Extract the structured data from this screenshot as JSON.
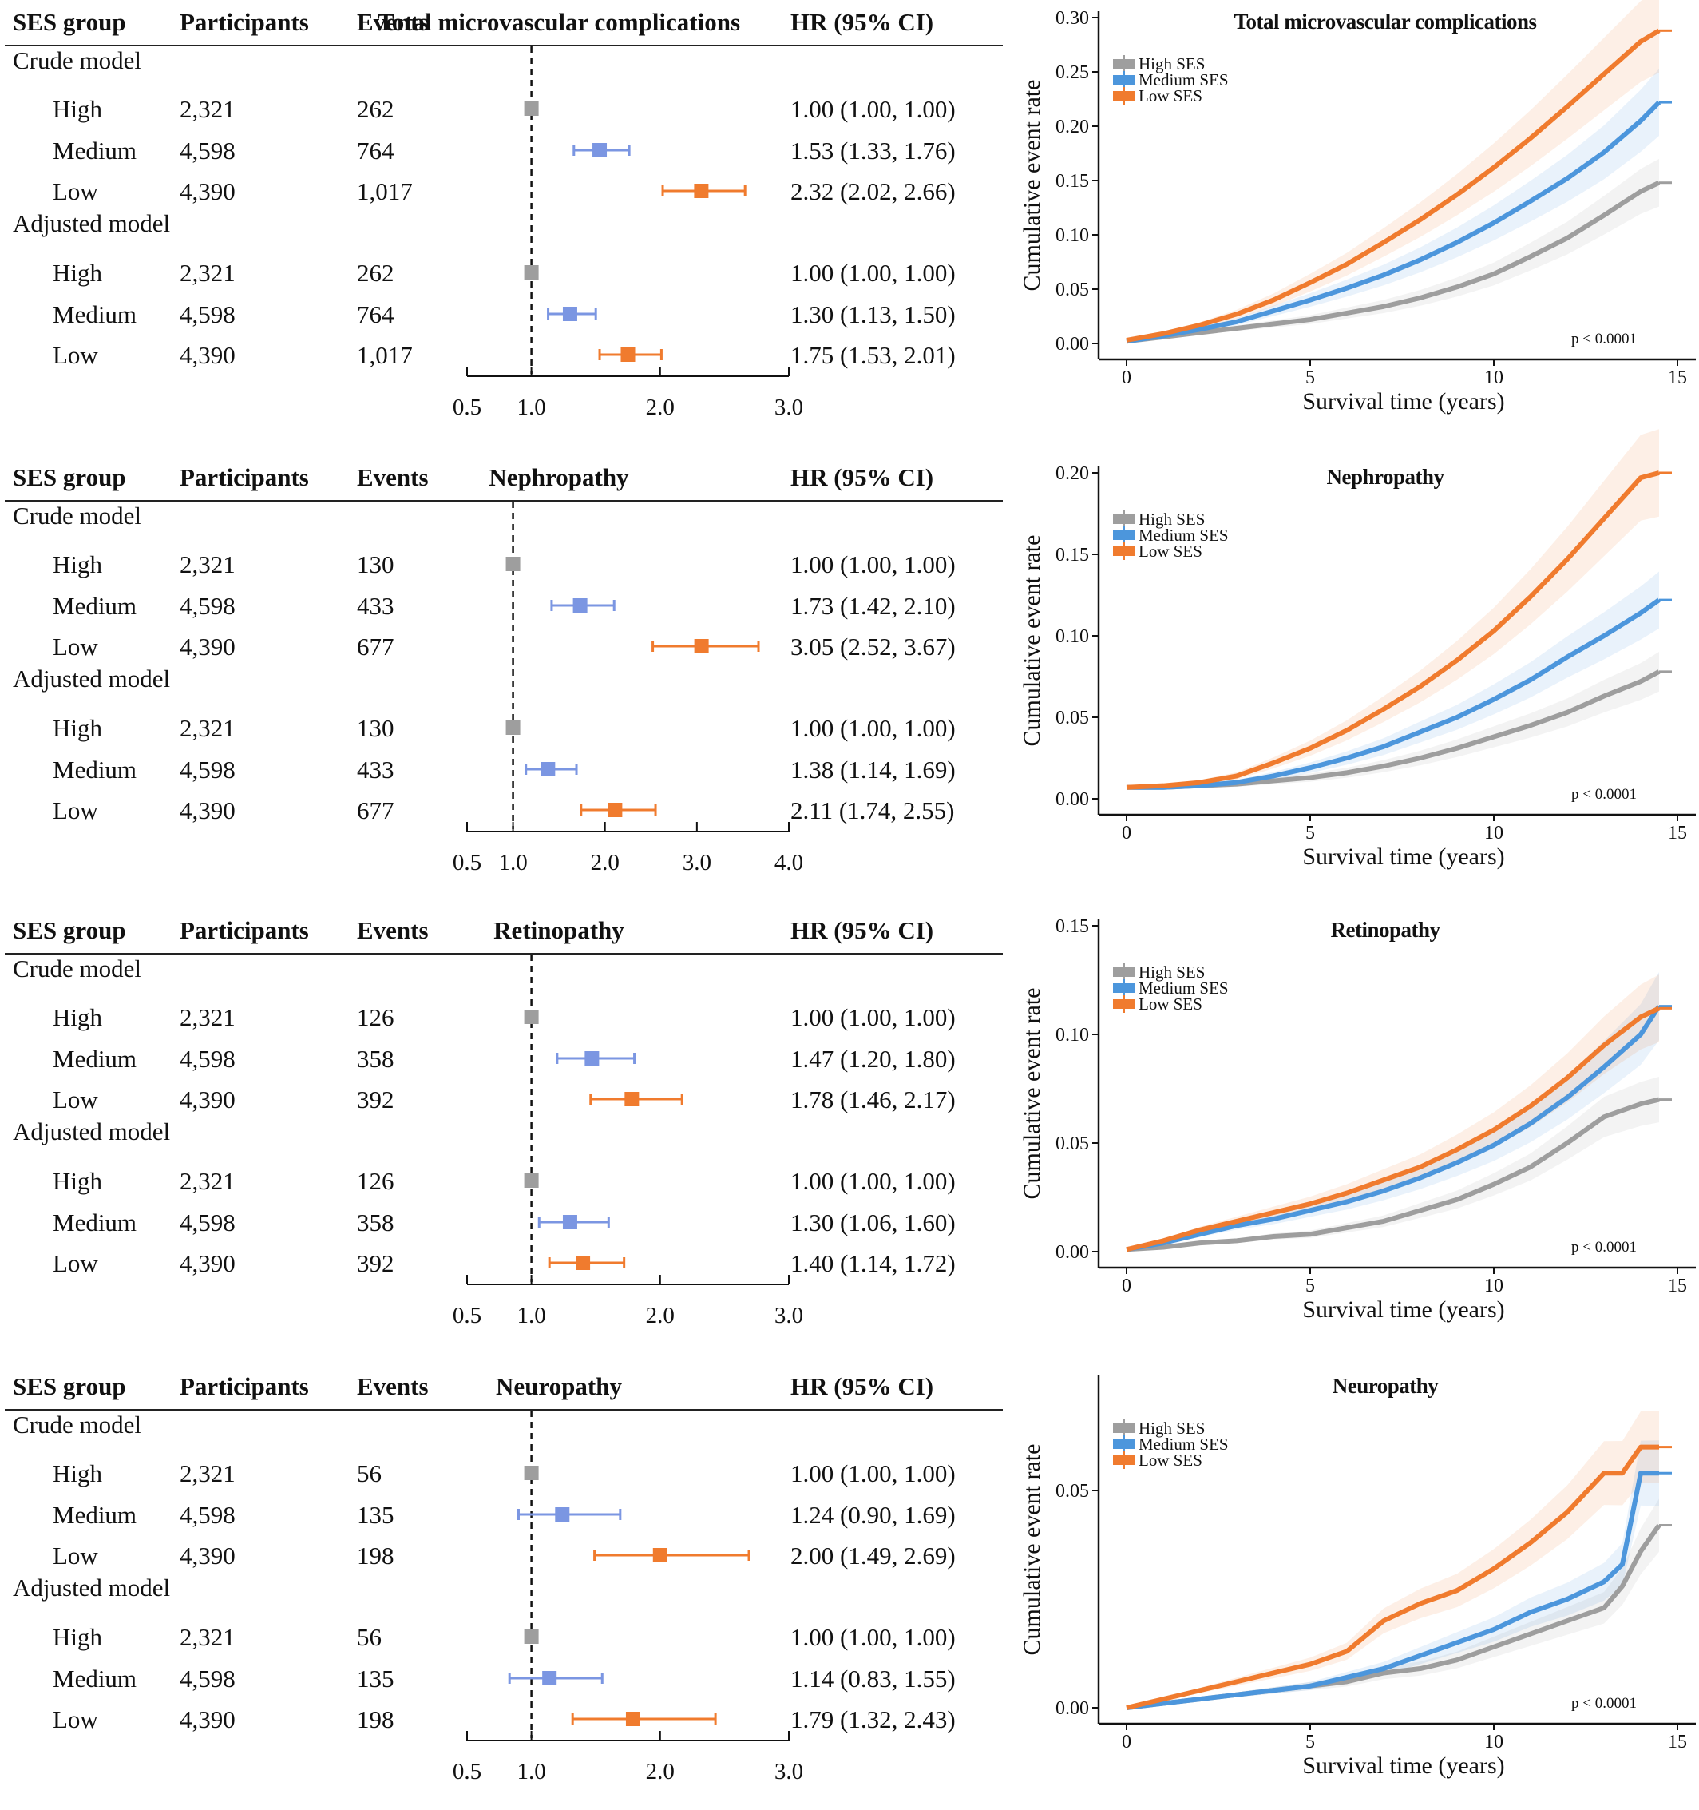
{
  "headers": {
    "group": "SES group",
    "participants": "Participants",
    "events": "Events",
    "hr": "HR (95% CI)"
  },
  "model_labels": {
    "crude": "Crude model",
    "adjusted": "Adjusted model"
  },
  "km_labels": {
    "ylabel": "Cumulative event rate",
    "xlabel": "Survival time (years)",
    "pvalue": "p < 0.0001",
    "legend": [
      "High SES",
      "Medium SES",
      "Low SES"
    ]
  },
  "colors": {
    "high": "#9E9E9E",
    "medium_forest": "#7B96E2",
    "medium_km": "#4C96DC",
    "low": "#F07B2E"
  },
  "chart_data": [
    {
      "type": "table",
      "title": "Total microvascular complications",
      "reference_line": 1.0,
      "axis_ticks": [
        "0.5",
        "1.0",
        "2.0",
        "3.0"
      ],
      "xlim": [
        0.5,
        3.0
      ],
      "rows": [
        {
          "model": "Crude model",
          "group": "High",
          "participants": "2,321",
          "events": "262",
          "hr": 1.0,
          "lo": 1.0,
          "hi": 1.0,
          "hr_text": "1.00 (1.00, 1.00)"
        },
        {
          "model": "Crude model",
          "group": "Medium",
          "participants": "4,598",
          "events": "764",
          "hr": 1.53,
          "lo": 1.33,
          "hi": 1.76,
          "hr_text": "1.53 (1.33, 1.76)"
        },
        {
          "model": "Crude model",
          "group": "Low",
          "participants": "4,390",
          "events": "1,017",
          "hr": 2.32,
          "lo": 2.02,
          "hi": 2.66,
          "hr_text": "2.32 (2.02, 2.66)"
        },
        {
          "model": "Adjusted model",
          "group": "High",
          "participants": "2,321",
          "events": "262",
          "hr": 1.0,
          "lo": 1.0,
          "hi": 1.0,
          "hr_text": "1.00 (1.00, 1.00)"
        },
        {
          "model": "Adjusted model",
          "group": "Medium",
          "participants": "4,598",
          "events": "764",
          "hr": 1.3,
          "lo": 1.13,
          "hi": 1.5,
          "hr_text": "1.30 (1.13, 1.50)"
        },
        {
          "model": "Adjusted model",
          "group": "Low",
          "participants": "4,390",
          "events": "1,017",
          "hr": 1.75,
          "lo": 1.53,
          "hi": 2.01,
          "hr_text": "1.75 (1.53, 2.01)"
        }
      ]
    },
    {
      "type": "line",
      "title": "Total microvascular complications",
      "xlabel": "Survival time (years)",
      "ylabel": "Cumulative event rate",
      "xlim": [
        0,
        15.5
      ],
      "ylim": [
        0,
        0.3
      ],
      "xticks": [
        0,
        5,
        10,
        15
      ],
      "yticks": [
        "0.00",
        "0.05",
        "0.10",
        "0.15",
        "0.20",
        "0.25",
        "0.30"
      ],
      "legend_position": "top-left",
      "x": [
        0,
        1,
        2,
        3,
        4,
        5,
        6,
        7,
        8,
        9,
        10,
        11,
        12,
        13,
        14,
        14.5
      ],
      "series": [
        {
          "name": "High SES",
          "values": [
            0.002,
            0.006,
            0.01,
            0.014,
            0.018,
            0.022,
            0.028,
            0.034,
            0.042,
            0.052,
            0.064,
            0.08,
            0.097,
            0.118,
            0.14,
            0.148
          ]
        },
        {
          "name": "Medium SES",
          "values": [
            0.002,
            0.007,
            0.013,
            0.02,
            0.03,
            0.04,
            0.051,
            0.063,
            0.077,
            0.093,
            0.111,
            0.131,
            0.152,
            0.176,
            0.205,
            0.222
          ]
        },
        {
          "name": "Low SES",
          "values": [
            0.003,
            0.009,
            0.017,
            0.027,
            0.04,
            0.056,
            0.073,
            0.093,
            0.114,
            0.137,
            0.162,
            0.189,
            0.218,
            0.248,
            0.278,
            0.288
          ]
        }
      ]
    },
    {
      "type": "table",
      "title": "Nephropathy",
      "reference_line": 1.0,
      "axis_ticks": [
        "0.5",
        "1.0",
        "2.0",
        "3.0",
        "4.0"
      ],
      "xlim": [
        0.5,
        4.0
      ],
      "rows": [
        {
          "model": "Crude model",
          "group": "High",
          "participants": "2,321",
          "events": "130",
          "hr": 1.0,
          "lo": 1.0,
          "hi": 1.0,
          "hr_text": "1.00 (1.00, 1.00)"
        },
        {
          "model": "Crude model",
          "group": "Medium",
          "participants": "4,598",
          "events": "433",
          "hr": 1.73,
          "lo": 1.42,
          "hi": 2.1,
          "hr_text": "1.73 (1.42, 2.10)"
        },
        {
          "model": "Crude model",
          "group": "Low",
          "participants": "4,390",
          "events": "677",
          "hr": 3.05,
          "lo": 2.52,
          "hi": 3.67,
          "hr_text": "3.05 (2.52, 3.67)"
        },
        {
          "model": "Adjusted model",
          "group": "High",
          "participants": "2,321",
          "events": "130",
          "hr": 1.0,
          "lo": 1.0,
          "hi": 1.0,
          "hr_text": "1.00 (1.00, 1.00)"
        },
        {
          "model": "Adjusted model",
          "group": "Medium",
          "participants": "4,598",
          "events": "433",
          "hr": 1.38,
          "lo": 1.14,
          "hi": 1.69,
          "hr_text": "1.38 (1.14, 1.69)"
        },
        {
          "model": "Adjusted model",
          "group": "Low",
          "participants": "4,390",
          "events": "677",
          "hr": 2.11,
          "lo": 1.74,
          "hi": 2.55,
          "hr_text": "2.11 (1.74, 2.55)"
        }
      ]
    },
    {
      "type": "line",
      "title": "Nephropathy",
      "xlabel": "Survival time (years)",
      "ylabel": "Cumulative event rate",
      "xlim": [
        0,
        15.5
      ],
      "ylim": [
        0,
        0.2
      ],
      "xticks": [
        0,
        5,
        10,
        15
      ],
      "yticks": [
        "0.00",
        "0.05",
        "0.10",
        "0.15",
        "0.20"
      ],
      "legend_position": "top-left",
      "x": [
        0,
        1,
        2,
        3,
        4,
        5,
        6,
        7,
        8,
        9,
        10,
        11,
        12,
        13,
        14,
        14.5
      ],
      "series": [
        {
          "name": "High SES",
          "values": [
            0.007,
            0.007,
            0.008,
            0.009,
            0.011,
            0.013,
            0.016,
            0.02,
            0.025,
            0.031,
            0.038,
            0.045,
            0.053,
            0.063,
            0.072,
            0.078
          ]
        },
        {
          "name": "Medium SES",
          "values": [
            0.007,
            0.007,
            0.008,
            0.01,
            0.014,
            0.019,
            0.025,
            0.032,
            0.041,
            0.05,
            0.061,
            0.073,
            0.087,
            0.1,
            0.114,
            0.122
          ]
        },
        {
          "name": "Low SES",
          "values": [
            0.007,
            0.008,
            0.01,
            0.014,
            0.022,
            0.031,
            0.042,
            0.055,
            0.069,
            0.085,
            0.103,
            0.124,
            0.147,
            0.172,
            0.197,
            0.2
          ]
        }
      ]
    },
    {
      "type": "table",
      "title": "Retinopathy",
      "reference_line": 1.0,
      "axis_ticks": [
        "0.5",
        "1.0",
        "2.0",
        "3.0"
      ],
      "xlim": [
        0.5,
        3.0
      ],
      "rows": [
        {
          "model": "Crude model",
          "group": "High",
          "participants": "2,321",
          "events": "126",
          "hr": 1.0,
          "lo": 1.0,
          "hi": 1.0,
          "hr_text": "1.00 (1.00, 1.00)"
        },
        {
          "model": "Crude model",
          "group": "Medium",
          "participants": "4,598",
          "events": "358",
          "hr": 1.47,
          "lo": 1.2,
          "hi": 1.8,
          "hr_text": "1.47 (1.20, 1.80)"
        },
        {
          "model": "Crude model",
          "group": "Low",
          "participants": "4,390",
          "events": "392",
          "hr": 1.78,
          "lo": 1.46,
          "hi": 2.17,
          "hr_text": "1.78 (1.46, 2.17)"
        },
        {
          "model": "Adjusted model",
          "group": "High",
          "participants": "2,321",
          "events": "126",
          "hr": 1.0,
          "lo": 1.0,
          "hi": 1.0,
          "hr_text": "1.00 (1.00, 1.00)"
        },
        {
          "model": "Adjusted model",
          "group": "Medium",
          "participants": "4,598",
          "events": "358",
          "hr": 1.3,
          "lo": 1.06,
          "hi": 1.6,
          "hr_text": "1.30 (1.06, 1.60)"
        },
        {
          "model": "Adjusted model",
          "group": "Low",
          "participants": "4,390",
          "events": "392",
          "hr": 1.4,
          "lo": 1.14,
          "hi": 1.72,
          "hr_text": "1.40 (1.14, 1.72)"
        }
      ]
    },
    {
      "type": "line",
      "title": "Retinopathy",
      "xlabel": "Survival time (years)",
      "ylabel": "Cumulative event rate",
      "xlim": [
        0,
        15.5
      ],
      "ylim": [
        0,
        0.15
      ],
      "xticks": [
        0,
        5,
        10,
        15
      ],
      "yticks": [
        "0.00",
        "0.05",
        "0.10",
        "0.15"
      ],
      "legend_position": "top-left",
      "x": [
        0,
        1,
        2,
        3,
        4,
        5,
        6,
        7,
        8,
        9,
        10,
        11,
        12,
        13,
        14,
        14.5
      ],
      "series": [
        {
          "name": "High SES",
          "values": [
            0.001,
            0.002,
            0.004,
            0.005,
            0.007,
            0.008,
            0.011,
            0.014,
            0.019,
            0.024,
            0.031,
            0.039,
            0.05,
            0.062,
            0.068,
            0.07
          ]
        },
        {
          "name": "Medium SES",
          "values": [
            0.001,
            0.004,
            0.008,
            0.012,
            0.015,
            0.019,
            0.023,
            0.028,
            0.034,
            0.041,
            0.049,
            0.059,
            0.071,
            0.085,
            0.1,
            0.113
          ]
        },
        {
          "name": "Low SES",
          "values": [
            0.001,
            0.005,
            0.01,
            0.014,
            0.018,
            0.022,
            0.027,
            0.033,
            0.039,
            0.047,
            0.056,
            0.067,
            0.08,
            0.095,
            0.108,
            0.112
          ]
        }
      ]
    },
    {
      "type": "table",
      "title": "Neuropathy",
      "reference_line": 1.0,
      "axis_ticks": [
        "0.5",
        "1.0",
        "2.0",
        "3.0"
      ],
      "xlim": [
        0.5,
        3.0
      ],
      "rows": [
        {
          "model": "Crude model",
          "group": "High",
          "participants": "2,321",
          "events": "56",
          "hr": 1.0,
          "lo": 1.0,
          "hi": 1.0,
          "hr_text": "1.00 (1.00, 1.00)"
        },
        {
          "model": "Crude model",
          "group": "Medium",
          "participants": "4,598",
          "events": "135",
          "hr": 1.24,
          "lo": 0.9,
          "hi": 1.69,
          "hr_text": "1.24 (0.90, 1.69)"
        },
        {
          "model": "Crude model",
          "group": "Low",
          "participants": "4,390",
          "events": "198",
          "hr": 2.0,
          "lo": 1.49,
          "hi": 2.69,
          "hr_text": "2.00 (1.49, 2.69)"
        },
        {
          "model": "Adjusted model",
          "group": "High",
          "participants": "2,321",
          "events": "56",
          "hr": 1.0,
          "lo": 1.0,
          "hi": 1.0,
          "hr_text": "1.00 (1.00, 1.00)"
        },
        {
          "model": "Adjusted model",
          "group": "Medium",
          "participants": "4,598",
          "events": "135",
          "hr": 1.14,
          "lo": 0.83,
          "hi": 1.55,
          "hr_text": "1.14 (0.83, 1.55)"
        },
        {
          "model": "Adjusted model",
          "group": "Low",
          "participants": "4,390",
          "events": "198",
          "hr": 1.79,
          "lo": 1.32,
          "hi": 2.43,
          "hr_text": "1.79 (1.32, 2.43)"
        }
      ]
    },
    {
      "type": "line",
      "title": "Neuropathy",
      "xlabel": "Survival time (years)",
      "ylabel": "Cumulative event rate",
      "xlim": [
        0,
        15.5
      ],
      "ylim": [
        0,
        0.075
      ],
      "xticks": [
        0,
        5,
        10,
        15
      ],
      "yticks": [
        "0.00",
        "0.05"
      ],
      "legend_position": "top-left",
      "x": [
        0,
        1,
        2,
        3,
        4,
        5,
        6,
        7,
        8,
        9,
        10,
        11,
        12,
        13,
        13.5,
        14,
        14.5
      ],
      "series": [
        {
          "name": "High SES",
          "values": [
            0.0,
            0.001,
            0.002,
            0.003,
            0.004,
            0.005,
            0.006,
            0.008,
            0.009,
            0.011,
            0.014,
            0.017,
            0.02,
            0.023,
            0.028,
            0.036,
            0.042
          ]
        },
        {
          "name": "Medium SES",
          "values": [
            0.0,
            0.001,
            0.002,
            0.003,
            0.004,
            0.005,
            0.007,
            0.009,
            0.012,
            0.015,
            0.018,
            0.022,
            0.025,
            0.029,
            0.033,
            0.054,
            0.054
          ]
        },
        {
          "name": "Low SES",
          "values": [
            0.0,
            0.002,
            0.004,
            0.006,
            0.008,
            0.01,
            0.013,
            0.02,
            0.024,
            0.027,
            0.032,
            0.038,
            0.045,
            0.054,
            0.054,
            0.06,
            0.06
          ]
        }
      ]
    }
  ]
}
